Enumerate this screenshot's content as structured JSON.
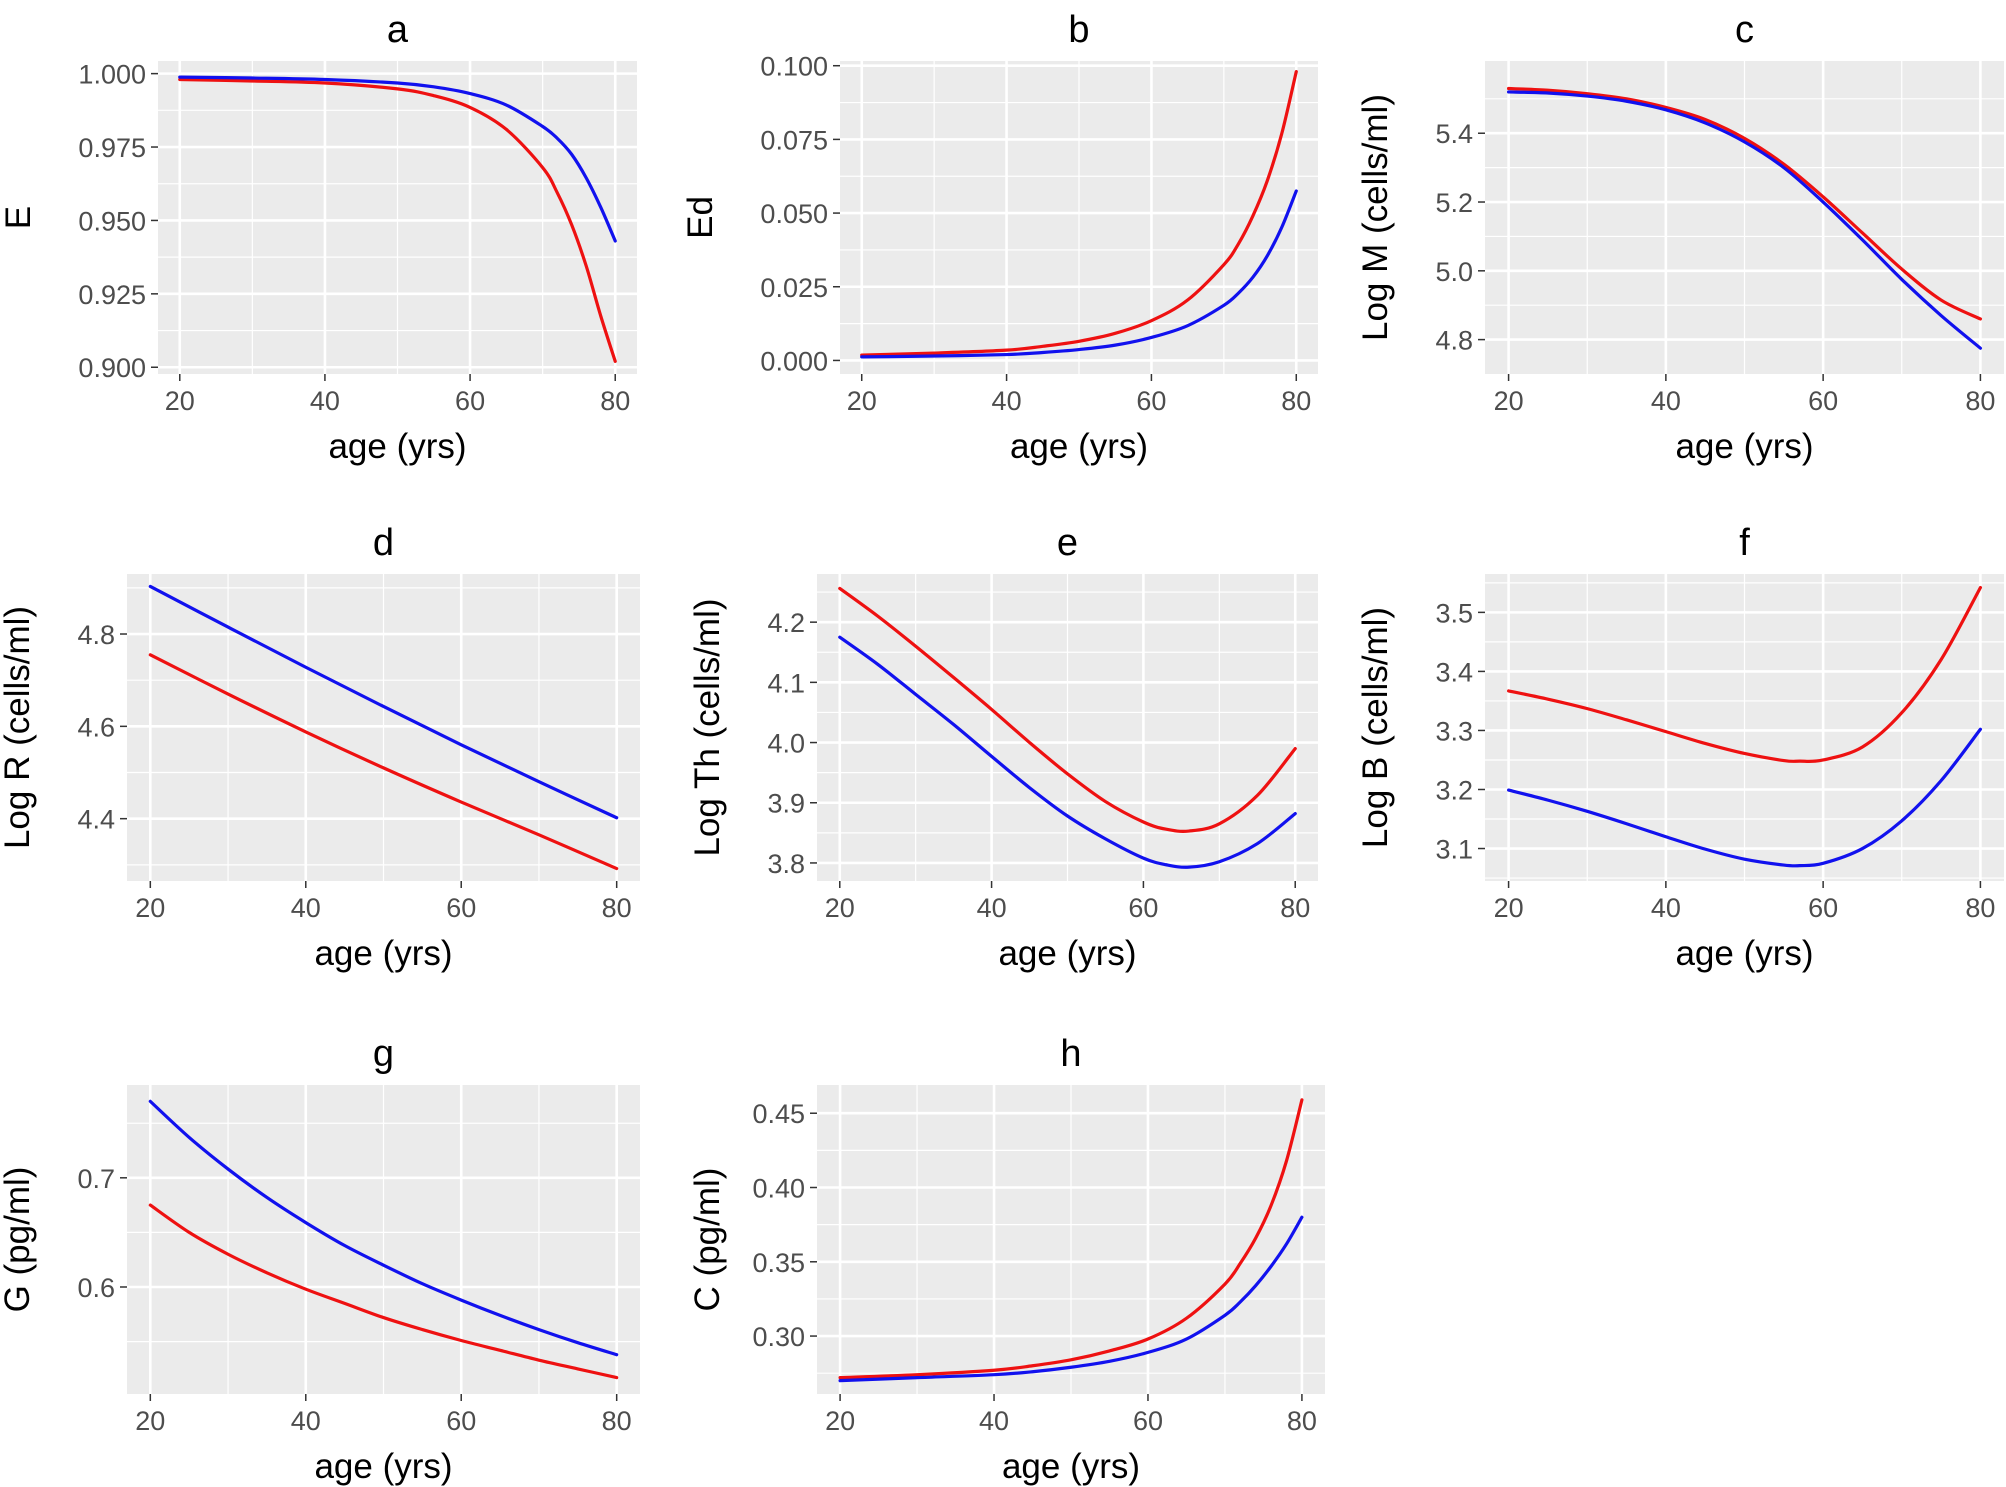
{
  "colors": {
    "red": "#ee1111",
    "blue": "#1111ee",
    "panel_bg": "#ebebeb",
    "grid": "#ffffff"
  },
  "chart_data": [
    {
      "id": "a",
      "type": "line",
      "title": "a",
      "xlabel": "age (yrs)",
      "ylabel": "E",
      "xlim": [
        17,
        83
      ],
      "ylim": [
        0.8977,
        1.0043
      ],
      "xticks": [
        20,
        40,
        60,
        80
      ],
      "xtick_labels": [
        "20",
        "40",
        "60",
        "80"
      ],
      "yticks": [
        0.9,
        0.925,
        0.95,
        0.975,
        1.0
      ],
      "ytick_labels": [
        "0.900",
        "0.925",
        "0.950",
        "0.975",
        "1.000"
      ],
      "series": [
        {
          "name": "red",
          "color": "#ee1111",
          "x": [
            20,
            30,
            40,
            50,
            55,
            60,
            65,
            70,
            72,
            74,
            76,
            78,
            80
          ],
          "y": [
            0.998,
            0.9975,
            0.9968,
            0.9948,
            0.9925,
            0.9885,
            0.981,
            0.968,
            0.9595,
            0.9485,
            0.9345,
            0.9175,
            0.902
          ]
        },
        {
          "name": "blue",
          "color": "#1111ee",
          "x": [
            20,
            30,
            40,
            50,
            55,
            60,
            65,
            70,
            72,
            74,
            76,
            78,
            80
          ],
          "y": [
            0.9988,
            0.9985,
            0.998,
            0.9968,
            0.9955,
            0.9932,
            0.9893,
            0.982,
            0.978,
            0.9725,
            0.9645,
            0.9545,
            0.943
          ]
        }
      ]
    },
    {
      "id": "b",
      "type": "line",
      "title": "b",
      "xlabel": "age (yrs)",
      "ylabel": "Ed",
      "xlim": [
        17,
        83
      ],
      "ylim": [
        -0.0046,
        0.1016
      ],
      "xticks": [
        20,
        40,
        60,
        80
      ],
      "xtick_labels": [
        "20",
        "40",
        "60",
        "80"
      ],
      "yticks": [
        0,
        0.025,
        0.05,
        0.075,
        0.1
      ],
      "ytick_labels": [
        "0.000",
        "0.025",
        "0.050",
        "0.075",
        "0.100"
      ],
      "series": [
        {
          "name": "red",
          "color": "#ee1111",
          "x": [
            20,
            30,
            40,
            45,
            50,
            55,
            60,
            65,
            70,
            72,
            74,
            76,
            78,
            80
          ],
          "y": [
            0.0018,
            0.0025,
            0.0035,
            0.0048,
            0.0065,
            0.0092,
            0.0135,
            0.0205,
            0.0325,
            0.0395,
            0.049,
            0.061,
            0.077,
            0.098
          ]
        },
        {
          "name": "blue",
          "color": "#1111ee",
          "x": [
            20,
            30,
            40,
            45,
            50,
            55,
            60,
            65,
            70,
            72,
            74,
            76,
            78,
            80
          ],
          "y": [
            0.0012,
            0.0015,
            0.002,
            0.0027,
            0.0037,
            0.0052,
            0.0078,
            0.0118,
            0.0187,
            0.0228,
            0.0282,
            0.0355,
            0.0452,
            0.0575
          ]
        }
      ]
    },
    {
      "id": "c",
      "type": "line",
      "title": "c",
      "xlabel": "age (yrs)",
      "ylabel": "Log M (cells/ml)",
      "xlim": [
        17,
        83
      ],
      "ylim": [
        4.7,
        5.61
      ],
      "xticks": [
        20,
        40,
        60,
        80
      ],
      "xtick_labels": [
        "20",
        "40",
        "60",
        "80"
      ],
      "yticks": [
        4.8,
        5.0,
        5.2,
        5.4
      ],
      "ytick_labels": [
        "4.8",
        "5.0",
        "5.2",
        "5.4"
      ],
      "series": [
        {
          "name": "red",
          "color": "#ee1111",
          "x": [
            20,
            25,
            30,
            35,
            40,
            45,
            50,
            55,
            60,
            65,
            70,
            75,
            80
          ],
          "y": [
            5.53,
            5.525,
            5.515,
            5.5,
            5.475,
            5.44,
            5.385,
            5.31,
            5.215,
            5.11,
            5.005,
            4.915,
            4.86
          ]
        },
        {
          "name": "blue",
          "color": "#1111ee",
          "x": [
            20,
            25,
            30,
            35,
            40,
            45,
            50,
            55,
            60,
            65,
            70,
            75,
            80
          ],
          "y": [
            5.52,
            5.517,
            5.508,
            5.493,
            5.468,
            5.43,
            5.375,
            5.3,
            5.2,
            5.09,
            4.975,
            4.87,
            4.775
          ]
        }
      ]
    },
    {
      "id": "d",
      "type": "line",
      "title": "d",
      "xlabel": "age (yrs)",
      "ylabel": "Log R (cells/ml)",
      "xlim": [
        17,
        83
      ],
      "ylim": [
        4.265,
        4.93
      ],
      "xticks": [
        20,
        40,
        60,
        80
      ],
      "xtick_labels": [
        "20",
        "40",
        "60",
        "80"
      ],
      "yticks": [
        4.4,
        4.6,
        4.8
      ],
      "ytick_labels": [
        "4.4",
        "4.6",
        "4.8"
      ],
      "series": [
        {
          "name": "red",
          "color": "#ee1111",
          "x": [
            20,
            30,
            40,
            50,
            60,
            70,
            80
          ],
          "y": [
            4.755,
            4.67,
            4.588,
            4.51,
            4.436,
            4.365,
            4.292
          ]
        },
        {
          "name": "blue",
          "color": "#1111ee",
          "x": [
            20,
            30,
            40,
            50,
            60,
            70,
            80
          ],
          "y": [
            4.903,
            4.815,
            4.728,
            4.643,
            4.56,
            4.48,
            4.402
          ]
        }
      ]
    },
    {
      "id": "e",
      "type": "line",
      "title": "e",
      "xlabel": "age (yrs)",
      "ylabel": "Log Th (cells/ml)",
      "xlim": [
        17,
        83
      ],
      "ylim": [
        3.77,
        4.28
      ],
      "xticks": [
        20,
        40,
        60,
        80
      ],
      "xtick_labels": [
        "20",
        "40",
        "60",
        "80"
      ],
      "yticks": [
        3.8,
        3.9,
        4.0,
        4.1,
        4.2
      ],
      "ytick_labels": [
        "3.8",
        "3.9",
        "4.0",
        "4.1",
        "4.2"
      ],
      "series": [
        {
          "name": "red",
          "color": "#ee1111",
          "x": [
            20,
            25,
            30,
            35,
            40,
            45,
            50,
            55,
            60,
            63,
            66,
            70,
            75,
            80
          ],
          "y": [
            4.256,
            4.21,
            4.16,
            4.108,
            4.055,
            4.0,
            3.948,
            3.902,
            3.868,
            3.856,
            3.853,
            3.865,
            3.912,
            3.99
          ]
        },
        {
          "name": "blue",
          "color": "#1111ee",
          "x": [
            20,
            25,
            30,
            35,
            40,
            45,
            50,
            55,
            60,
            63,
            66,
            70,
            75,
            80
          ],
          "y": [
            4.175,
            4.13,
            4.08,
            4.03,
            3.977,
            3.925,
            3.878,
            3.84,
            3.808,
            3.797,
            3.793,
            3.802,
            3.832,
            3.882
          ]
        }
      ]
    },
    {
      "id": "f",
      "type": "line",
      "title": "f",
      "xlabel": "age (yrs)",
      "ylabel": "Log B (cells/ml)",
      "xlim": [
        17,
        83
      ],
      "ylim": [
        3.045,
        3.565
      ],
      "xticks": [
        20,
        40,
        60,
        80
      ],
      "xtick_labels": [
        "20",
        "40",
        "60",
        "80"
      ],
      "yticks": [
        3.1,
        3.2,
        3.3,
        3.4,
        3.5
      ],
      "ytick_labels": [
        "3.1",
        "3.2",
        "3.3",
        "3.4",
        "3.5"
      ],
      "series": [
        {
          "name": "red",
          "color": "#ee1111",
          "x": [
            20,
            25,
            30,
            35,
            40,
            45,
            50,
            55,
            57,
            60,
            65,
            70,
            75,
            80
          ],
          "y": [
            3.367,
            3.353,
            3.337,
            3.318,
            3.298,
            3.278,
            3.261,
            3.249,
            3.248,
            3.25,
            3.272,
            3.33,
            3.42,
            3.542
          ]
        },
        {
          "name": "blue",
          "color": "#1111ee",
          "x": [
            20,
            25,
            30,
            35,
            40,
            45,
            50,
            55,
            57,
            60,
            65,
            70,
            75,
            80
          ],
          "y": [
            3.199,
            3.182,
            3.163,
            3.142,
            3.12,
            3.099,
            3.082,
            3.072,
            3.071,
            3.075,
            3.1,
            3.147,
            3.215,
            3.302
          ]
        }
      ]
    },
    {
      "id": "g",
      "type": "line",
      "title": "g",
      "xlabel": "age (yrs)",
      "ylabel": "G (pg/ml)",
      "xlim": [
        17,
        83
      ],
      "ylim": [
        0.502,
        0.785
      ],
      "xticks": [
        20,
        40,
        60,
        80
      ],
      "xtick_labels": [
        "20",
        "40",
        "60",
        "80"
      ],
      "yticks": [
        0.6,
        0.7
      ],
      "ytick_labels": [
        "0.6",
        "0.7"
      ],
      "series": [
        {
          "name": "red",
          "color": "#ee1111",
          "x": [
            20,
            25,
            30,
            35,
            40,
            45,
            50,
            55,
            60,
            65,
            70,
            75,
            80
          ],
          "y": [
            0.675,
            0.65,
            0.63,
            0.613,
            0.598,
            0.585,
            0.572,
            0.561,
            0.551,
            0.542,
            0.533,
            0.525,
            0.517
          ]
        },
        {
          "name": "blue",
          "color": "#1111ee",
          "x": [
            20,
            25,
            30,
            35,
            40,
            45,
            50,
            55,
            60,
            65,
            70,
            75,
            80
          ],
          "y": [
            0.77,
            0.737,
            0.708,
            0.682,
            0.659,
            0.638,
            0.62,
            0.603,
            0.588,
            0.574,
            0.561,
            0.549,
            0.538
          ]
        }
      ]
    },
    {
      "id": "h",
      "type": "line",
      "title": "h",
      "xlabel": "age (yrs)",
      "ylabel": "C (pg/ml)",
      "xlim": [
        17,
        83
      ],
      "ylim": [
        0.261,
        0.469
      ],
      "xticks": [
        20,
        40,
        60,
        80
      ],
      "xtick_labels": [
        "20",
        "40",
        "60",
        "80"
      ],
      "yticks": [
        0.3,
        0.35,
        0.4,
        0.45
      ],
      "ytick_labels": [
        "0.30",
        "0.35",
        "0.40",
        "0.45"
      ],
      "series": [
        {
          "name": "red",
          "color": "#ee1111",
          "x": [
            20,
            30,
            40,
            45,
            50,
            55,
            60,
            65,
            70,
            72,
            74,
            76,
            78,
            80
          ],
          "y": [
            0.272,
            0.274,
            0.277,
            0.28,
            0.284,
            0.29,
            0.298,
            0.312,
            0.335,
            0.349,
            0.366,
            0.388,
            0.418,
            0.459
          ]
        },
        {
          "name": "blue",
          "color": "#1111ee",
          "x": [
            20,
            30,
            40,
            45,
            50,
            55,
            60,
            65,
            70,
            72,
            74,
            76,
            78,
            80
          ],
          "y": [
            0.27,
            0.272,
            0.274,
            0.276,
            0.279,
            0.283,
            0.289,
            0.298,
            0.314,
            0.323,
            0.334,
            0.347,
            0.362,
            0.38
          ]
        }
      ]
    }
  ]
}
